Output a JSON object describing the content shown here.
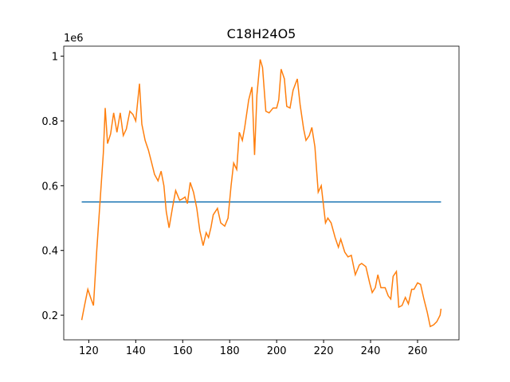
{
  "chart_data": {
    "type": "line",
    "title": "C18H24O5",
    "y_offset_text": "1e6",
    "xlim": [
      109.35,
      277.65
    ],
    "ylim": [
      0.124,
      1.031
    ],
    "xticks": [
      120,
      140,
      160,
      180,
      200,
      220,
      240,
      260
    ],
    "yticks": [
      0.2,
      0.4,
      0.6,
      0.8,
      1.0
    ],
    "series": [
      {
        "color": "#1f77b4",
        "x": [
          117,
          270
        ],
        "values": [
          0.55,
          0.55
        ]
      },
      {
        "color": "#ff7f0e",
        "x": [
          117,
          118.2,
          119.6,
          121,
          122,
          123.4,
          124.8,
          126.2,
          127,
          128,
          129.3,
          130.6,
          132,
          133.4,
          134.7,
          136,
          137.5,
          138.8,
          140,
          141.6,
          142.6,
          144,
          145.4,
          146.8,
          148,
          149.5,
          150.8,
          152,
          153,
          154.2,
          155.6,
          157,
          158.7,
          160,
          161,
          162,
          163.2,
          164.6,
          166,
          167.3,
          168.7,
          170,
          171,
          172,
          173,
          174.8,
          176.2,
          177.9,
          179.3,
          180.6,
          181.7,
          183,
          184.1,
          185.4,
          186.4,
          188.1,
          189.5,
          190.6,
          191.6,
          193,
          194,
          195.4,
          196.8,
          198.5,
          200,
          200.9,
          201.9,
          203.3,
          204.3,
          205.7,
          207,
          208.8,
          210,
          211.5,
          212.5,
          213.9,
          215,
          216.3,
          217.7,
          219,
          220.8,
          221.8,
          223.2,
          224.9,
          226.3,
          227.3,
          229,
          230.4,
          231.8,
          233.5,
          235.2,
          236.2,
          238,
          239.6,
          240.7,
          242,
          243.1,
          244.4,
          246.2,
          247.5,
          248.6,
          249.6,
          251,
          252,
          253.4,
          254.8,
          256.1,
          257.5,
          258.5,
          260,
          261.3,
          262.7,
          264.1,
          265.4,
          266.8,
          268.2,
          269.6,
          270
        ],
        "values": [
          0.185,
          0.23,
          0.28,
          0.25,
          0.23,
          0.4,
          0.55,
          0.7,
          0.84,
          0.73,
          0.76,
          0.825,
          0.765,
          0.825,
          0.755,
          0.775,
          0.83,
          0.82,
          0.8,
          0.915,
          0.79,
          0.74,
          0.71,
          0.67,
          0.635,
          0.615,
          0.645,
          0.6,
          0.52,
          0.47,
          0.53,
          0.585,
          0.555,
          0.56,
          0.565,
          0.545,
          0.61,
          0.58,
          0.53,
          0.46,
          0.415,
          0.455,
          0.44,
          0.47,
          0.51,
          0.53,
          0.485,
          0.475,
          0.5,
          0.6,
          0.67,
          0.65,
          0.765,
          0.74,
          0.78,
          0.865,
          0.905,
          0.695,
          0.88,
          0.99,
          0.965,
          0.83,
          0.825,
          0.84,
          0.84,
          0.865,
          0.96,
          0.93,
          0.845,
          0.84,
          0.895,
          0.93,
          0.85,
          0.775,
          0.74,
          0.755,
          0.78,
          0.72,
          0.58,
          0.6,
          0.485,
          0.5,
          0.485,
          0.44,
          0.41,
          0.435,
          0.395,
          0.38,
          0.385,
          0.325,
          0.355,
          0.36,
          0.35,
          0.3,
          0.27,
          0.285,
          0.325,
          0.285,
          0.285,
          0.26,
          0.25,
          0.32,
          0.335,
          0.225,
          0.23,
          0.255,
          0.235,
          0.28,
          0.28,
          0.3,
          0.295,
          0.25,
          0.21,
          0.165,
          0.17,
          0.18,
          0.2,
          0.22
        ]
      }
    ]
  }
}
